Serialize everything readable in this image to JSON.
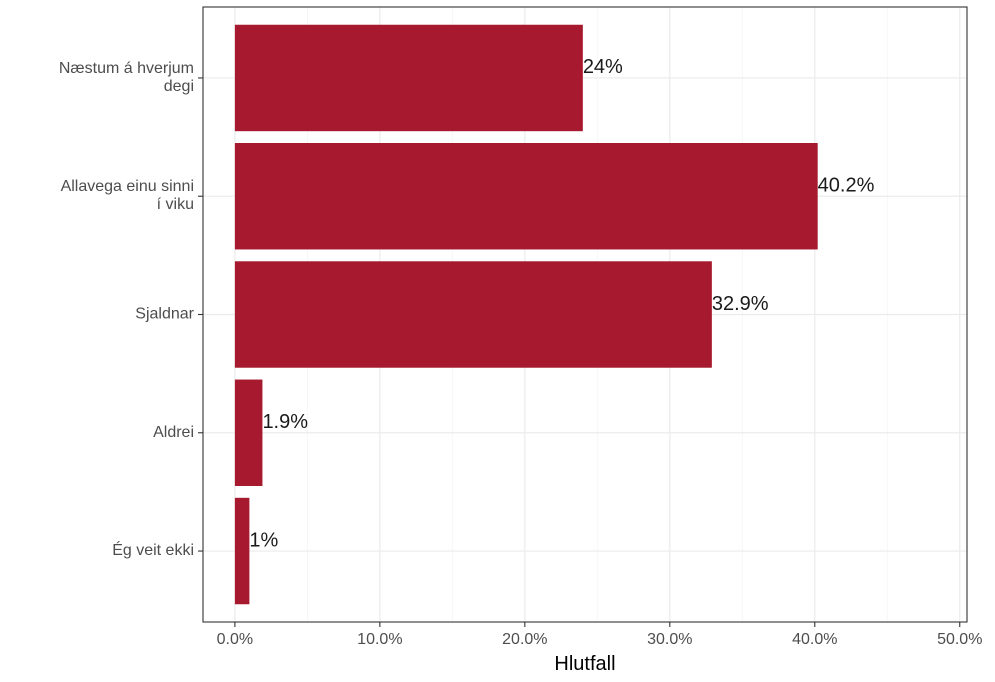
{
  "chart_data": {
    "type": "bar",
    "orientation": "horizontal",
    "categories": [
      [
        "Næstum á hverjum",
        "degi"
      ],
      [
        "Allavega einu sinni",
        "í viku"
      ],
      [
        "Sjaldnar"
      ],
      [
        "Aldrei"
      ],
      [
        "Ég veit ekki"
      ]
    ],
    "values": [
      24,
      40.2,
      32.9,
      1.9,
      1.0
    ],
    "value_labels": [
      "24%",
      "40.2%",
      "32.9%",
      "1.9%",
      "1%"
    ],
    "xlabel": "Hlutfall",
    "ylabel": "",
    "xlim": [
      -2.2,
      50.5
    ],
    "xticks": [
      0,
      10,
      20,
      30,
      40,
      50
    ],
    "xtick_labels": [
      "0.0%",
      "10.0%",
      "20.0%",
      "30.0%",
      "40.0%",
      "50.0%"
    ],
    "grid": true,
    "legend": "none",
    "colors": {
      "bar": "#a6192e",
      "grid_major": "#ebebeb",
      "grid_minor": "#f5f5f5",
      "panel_border": "#333333",
      "tick_text": "#4d4d4d",
      "label_text": "#1a1a1a"
    }
  }
}
